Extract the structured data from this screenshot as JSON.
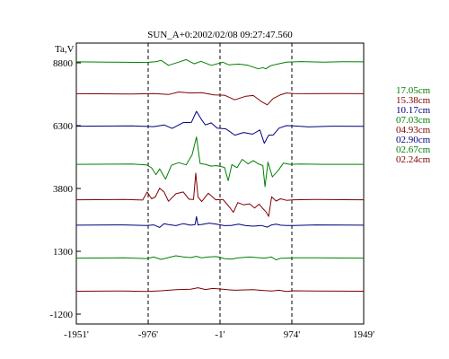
{
  "chart_data": {
    "type": "line",
    "title": "SUN_A+0:2002/02/08 09:27:47.560",
    "ylabel": "Ta,V",
    "x_ticks": [
      -1951,
      -976,
      -1,
      974,
      1949
    ],
    "x_tick_labels": [
      "-1951'",
      "-976'",
      "-1'",
      "974'",
      "1949'"
    ],
    "xlim": [
      -1951,
      1949
    ],
    "y_ticks": [
      8800,
      6300,
      3800,
      1300,
      -1200
    ],
    "ylim": [
      -1200,
      8800
    ],
    "vertical_markers": [
      -976,
      -1,
      974
    ],
    "legend_position": "right",
    "series": [
      {
        "name": "17.05cm",
        "color": "#008000",
        "x": [
          -1951,
          -1500,
          -1000,
          -860,
          -800,
          -700,
          -560,
          -460,
          -350,
          -260,
          -120,
          40,
          120,
          250,
          380,
          520,
          580,
          620,
          680,
          760,
          900,
          1100,
          1400,
          1700,
          1949
        ],
        "values": [
          8840,
          8830,
          8815,
          8850,
          8900,
          8700,
          8830,
          8930,
          8760,
          8860,
          8700,
          8820,
          8720,
          8750,
          8700,
          8560,
          8610,
          8560,
          8680,
          8740,
          8830,
          8850,
          8830,
          8845,
          8840
        ]
      },
      {
        "name": "15.38cm",
        "color": "#800000",
        "x": [
          -1951,
          -1200,
          -900,
          -700,
          -560,
          -400,
          -250,
          -80,
          60,
          200,
          350,
          450,
          560,
          640,
          720,
          820,
          900,
          1000,
          1200,
          1500,
          1949
        ],
        "values": [
          7570,
          7560,
          7580,
          7540,
          7640,
          7600,
          7610,
          7520,
          7510,
          7330,
          7470,
          7500,
          7260,
          7130,
          7380,
          7530,
          7600,
          7580,
          7570,
          7580,
          7570
        ]
      },
      {
        "name": "10.17cm",
        "color": "#000080",
        "x": [
          -1951,
          -1200,
          -900,
          -760,
          -650,
          -500,
          -390,
          -320,
          -250,
          -200,
          -120,
          -40,
          80,
          200,
          320,
          440,
          540,
          600,
          660,
          720,
          800,
          900,
          1000,
          1200,
          1500,
          1949
        ],
        "values": [
          6280,
          6290,
          6260,
          6330,
          6190,
          6420,
          6430,
          6870,
          6530,
          6330,
          6410,
          6200,
          6170,
          5920,
          6030,
          5960,
          6130,
          5600,
          5920,
          5930,
          6200,
          6300,
          6290,
          6250,
          6280,
          6270
        ]
      },
      {
        "name": "07.03cm",
        "color": "#008000",
        "x": [
          -1951,
          -1200,
          -1000,
          -930,
          -870,
          -820,
          -740,
          -660,
          -560,
          -460,
          -380,
          -320,
          -270,
          -200,
          -120,
          -50,
          60,
          110,
          160,
          230,
          300,
          380,
          450,
          520,
          580,
          610,
          650,
          710,
          790,
          860,
          950,
          1100,
          1400,
          1949
        ],
        "values": [
          4760,
          4770,
          4740,
          4620,
          4350,
          4580,
          4170,
          4720,
          4830,
          4740,
          5140,
          5850,
          4790,
          4760,
          4690,
          4710,
          4640,
          4110,
          4750,
          4630,
          4960,
          4780,
          4910,
          4780,
          4710,
          3870,
          4850,
          4260,
          4520,
          4810,
          4760,
          4770,
          4760,
          4760
        ]
      },
      {
        "name": "04.93cm",
        "color": "#800000",
        "x": [
          -1951,
          -1300,
          -1050,
          -990,
          -930,
          -880,
          -820,
          -760,
          -700,
          -600,
          -500,
          -420,
          -360,
          -330,
          -300,
          -250,
          -160,
          -60,
          40,
          130,
          180,
          240,
          320,
          400,
          470,
          530,
          580,
          620,
          660,
          700,
          760,
          820,
          900,
          1000,
          1300,
          1949
        ],
        "values": [
          3350,
          3360,
          3340,
          3660,
          3390,
          3460,
          3810,
          3660,
          3290,
          3590,
          3660,
          3370,
          3360,
          4410,
          3460,
          3280,
          3610,
          3350,
          3360,
          3050,
          2850,
          3240,
          3150,
          3190,
          3020,
          3180,
          3000,
          2880,
          2690,
          3470,
          3300,
          3390,
          3330,
          3350,
          3360,
          3350
        ]
      },
      {
        "name": "02.90cm",
        "color": "#000080",
        "x": [
          -1951,
          -1300,
          -1000,
          -900,
          -820,
          -760,
          -700,
          -600,
          -500,
          -400,
          -340,
          -320,
          -300,
          -240,
          -150,
          -50,
          60,
          150,
          250,
          350,
          450,
          560,
          640,
          700,
          760,
          820,
          900,
          1000,
          1300,
          1949
        ],
        "values": [
          2340,
          2350,
          2330,
          2350,
          2250,
          2400,
          2360,
          2320,
          2400,
          2340,
          2360,
          2680,
          2350,
          2370,
          2420,
          2380,
          2320,
          2330,
          2380,
          2320,
          2300,
          2330,
          2260,
          2350,
          2380,
          2340,
          2330,
          2330,
          2350,
          2340
        ]
      },
      {
        "name": "02.67cm",
        "color": "#008000",
        "x": [
          -1951,
          -1300,
          -1000,
          -900,
          -800,
          -700,
          -600,
          -500,
          -400,
          -320,
          -250,
          -150,
          -50,
          60,
          150,
          250,
          400,
          500,
          600,
          700,
          760,
          820,
          900,
          1000,
          1300,
          1949
        ],
        "values": [
          1030,
          1040,
          1010,
          1070,
          980,
          1050,
          1120,
          1080,
          1050,
          1100,
          1040,
          1080,
          1090,
          1010,
          990,
          1040,
          1070,
          1050,
          1030,
          1070,
          960,
          1020,
          1030,
          1040,
          1040,
          1030
        ]
      },
      {
        "name": "02.24cm",
        "color": "#800000",
        "x": [
          -1951,
          -1300,
          -1000,
          -800,
          -600,
          -400,
          -300,
          -200,
          -100,
          0,
          100,
          200,
          300,
          450,
          600,
          700,
          800,
          900,
          1000,
          1300,
          1949
        ],
        "values": [
          -290,
          -280,
          -300,
          -270,
          -230,
          -210,
          -150,
          -220,
          -180,
          -200,
          -230,
          -250,
          -240,
          -230,
          -260,
          -280,
          -250,
          -300,
          -270,
          -280,
          -290
        ]
      }
    ]
  }
}
